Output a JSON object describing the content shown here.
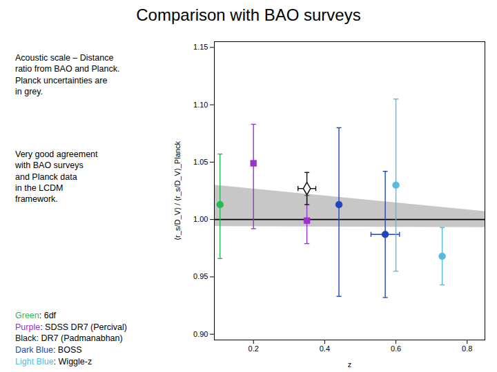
{
  "chart_data": {
    "type": "scatter",
    "title": "Comparison with BAO surveys",
    "xlabel": "z",
    "ylabel": "⟨r_s/D_V⟩ / ⟨r_s/D_V⟩_Planck",
    "xlim": [
      0.09,
      0.85
    ],
    "ylim": [
      0.895,
      1.155
    ],
    "xticks": [
      0.2,
      0.4,
      0.6,
      0.8
    ],
    "yticks": [
      {
        "value": 0.9,
        "label": "0.90"
      },
      0.95,
      {
        "value": 1.0,
        "label": "1.00"
      },
      1.05,
      {
        "value": 1.1,
        "label": "1.10"
      },
      1.15
    ],
    "grid": false,
    "legend": "lower left",
    "annotations": [
      "Acoustic scale – Distance\nratio from BAO and Planck.\nPlanck uncertainties are\nin grey.",
      "Very good agreement\nwith BAO surveys\nand Planck data\nin the LCDM\nframework."
    ],
    "band": {
      "color": "#999999",
      "x": [
        0.09,
        0.85
      ],
      "low": [
        0.994,
        0.993
      ],
      "high": [
        1.03,
        1.007
      ]
    },
    "reference_lines": [
      {
        "y": 1.0,
        "color": "#000000"
      }
    ],
    "series": [
      {
        "name": "Green: 6df",
        "color": "#22BB55",
        "marker": "circle",
        "x": [
          0.106
        ],
        "values": [
          1.013
        ],
        "yerr_up": [
          0.044
        ],
        "yerr_down": [
          0.047
        ],
        "xerr": [
          0.0
        ]
      },
      {
        "name": "Purple: SDSS DR7 (Percival)",
        "color": "#9933CC",
        "marker": "square",
        "x": [
          0.2,
          0.35
        ],
        "values": [
          1.049,
          0.999
        ],
        "yerr_up": [
          0.034,
          0.022
        ],
        "yerr_down": [
          0.057,
          0.02
        ],
        "xerr": [
          0.0,
          0.0
        ]
      },
      {
        "name": "Black: DR7 (Padmanabhan)",
        "color": "#111111",
        "marker": "open_diamond",
        "x": [
          0.35
        ],
        "values": [
          1.027
        ],
        "yerr_up": [
          0.014
        ],
        "yerr_down": [
          0.014
        ],
        "xerr": [
          0.025
        ]
      },
      {
        "name": "Dark Blue: BOSS",
        "color": "#2244BB",
        "marker": "circle",
        "x": [
          0.44,
          0.57
        ],
        "values": [
          1.013,
          0.987
        ],
        "yerr_up": [
          0.067,
          0.055
        ],
        "yerr_down": [
          0.08,
          0.055
        ],
        "xerr": [
          0.0,
          0.04
        ]
      },
      {
        "name": "Light Blue: Wiggle-z",
        "color": "#55BBDD",
        "marker": "circle",
        "x": [
          0.6,
          0.73
        ],
        "values": [
          1.03,
          0.968
        ],
        "yerr_up": [
          0.075,
          0.025
        ],
        "yerr_down": [
          0.075,
          0.025
        ],
        "xerr": [
          0.0,
          0.0
        ]
      }
    ]
  }
}
